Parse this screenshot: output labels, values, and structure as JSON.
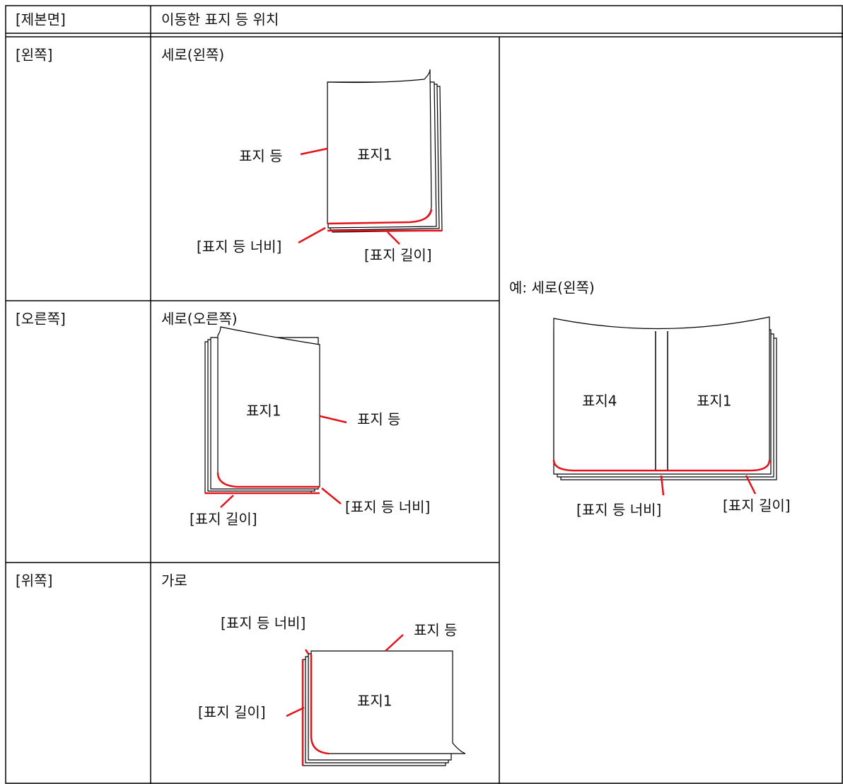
{
  "table": {
    "header": [
      "[제본면]",
      "이동한 표지 등 위치"
    ],
    "rows": [
      {
        "side": "[왼쪽]",
        "orientation": "세로(왼쪽)",
        "spine": "표지 등",
        "cover": "표지1",
        "spine_width": "[표지 등 너비]",
        "cover_length": "[표지 길이]"
      },
      {
        "side": "[오른쪽]",
        "orientation": "세로(오른쪽)",
        "spine": "표지 등",
        "cover": "표지1",
        "spine_width": "[표지 등 너비]",
        "cover_length": "[표지 길이]"
      },
      {
        "side": "[위쪽]",
        "orientation": "가로",
        "spine": "표지 등",
        "cover": "표지1",
        "spine_width": "[표지 등 너비]",
        "cover_length": "[표지 길이]"
      }
    ],
    "example": {
      "caption": "예: 세로(왼쪽)",
      "back_cover": "표지4",
      "front_cover": "표지1",
      "spine_width": "[표지 등 너비]",
      "cover_length": "[표지 길이]"
    }
  }
}
